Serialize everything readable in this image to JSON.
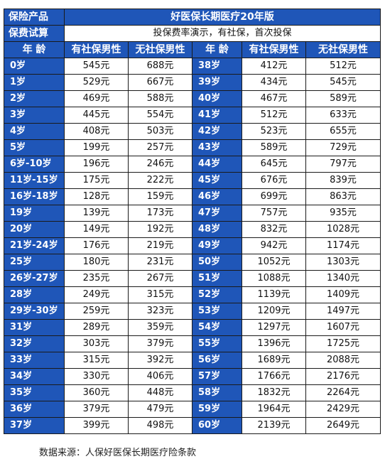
{
  "header": {
    "product_label": "保险产品",
    "product_name": "好医保长期医疗20年版",
    "trial_label": "保费试算",
    "trial_desc": "投保费率演示，有社保，首次投保"
  },
  "columns": {
    "age": "年  龄",
    "with_social": "有社保男性",
    "without_social": "无社保男性"
  },
  "rows": [
    {
      "left": [
        "0岁",
        "545元",
        "688元"
      ],
      "right": [
        "38岁",
        "412元",
        "512元"
      ]
    },
    {
      "left": [
        "1岁",
        "529元",
        "667元"
      ],
      "right": [
        "39岁",
        "434元",
        "545元"
      ]
    },
    {
      "left": [
        "2岁",
        "469元",
        "588元"
      ],
      "right": [
        "40岁",
        "467元",
        "589元"
      ]
    },
    {
      "left": [
        "3岁",
        "445元",
        "554元"
      ],
      "right": [
        "41岁",
        "512元",
        "633元"
      ]
    },
    {
      "left": [
        "4岁",
        "408元",
        "503元"
      ],
      "right": [
        "42岁",
        "523元",
        "655元"
      ]
    },
    {
      "left": [
        "5岁",
        "199元",
        "257元"
      ],
      "right": [
        "43岁",
        "589元",
        "729元"
      ]
    },
    {
      "left": [
        "6岁-10岁",
        "196元",
        "246元"
      ],
      "right": [
        "44岁",
        "645元",
        "797元"
      ]
    },
    {
      "left": [
        "11岁-15岁",
        "175元",
        "222元"
      ],
      "right": [
        "45岁",
        "676元",
        "839元"
      ]
    },
    {
      "left": [
        "16岁-18岁",
        "128元",
        "159元"
      ],
      "right": [
        "46岁",
        "699元",
        "863元"
      ]
    },
    {
      "left": [
        "19岁",
        "139元",
        "173元"
      ],
      "right": [
        "47岁",
        "757元",
        "935元"
      ]
    },
    {
      "left": [
        "20岁",
        "149元",
        "192元"
      ],
      "right": [
        "48岁",
        "832元",
        "1028元"
      ]
    },
    {
      "left": [
        "21岁-24岁",
        "176元",
        "219元"
      ],
      "right": [
        "49岁",
        "942元",
        "1174元"
      ]
    },
    {
      "left": [
        "25岁",
        "180元",
        "231元"
      ],
      "right": [
        "50岁",
        "1052元",
        "1303元"
      ]
    },
    {
      "left": [
        "26岁-27岁",
        "235元",
        "267元"
      ],
      "right": [
        "51岁",
        "1088元",
        "1340元"
      ]
    },
    {
      "left": [
        "28岁",
        "249元",
        "315元"
      ],
      "right": [
        "52岁",
        "1139元",
        "1409元"
      ]
    },
    {
      "left": [
        "29岁-30岁",
        "259元",
        "323元"
      ],
      "right": [
        "53岁",
        "1209元",
        "1497元"
      ]
    },
    {
      "left": [
        "31岁",
        "289元",
        "359元"
      ],
      "right": [
        "54岁",
        "1297元",
        "1607元"
      ]
    },
    {
      "left": [
        "32岁",
        "303元",
        "379元"
      ],
      "right": [
        "55岁",
        "1396元",
        "1725元"
      ]
    },
    {
      "left": [
        "33岁",
        "315元",
        "392元"
      ],
      "right": [
        "56岁",
        "1689元",
        "2088元"
      ]
    },
    {
      "left": [
        "34岁",
        "330元",
        "406元"
      ],
      "right": [
        "57岁",
        "1766元",
        "2176元"
      ]
    },
    {
      "left": [
        "35岁",
        "360元",
        "448元"
      ],
      "right": [
        "58岁",
        "1832元",
        "2264元"
      ]
    },
    {
      "left": [
        "36岁",
        "379元",
        "479元"
      ],
      "right": [
        "59岁",
        "1964元",
        "2429元"
      ]
    },
    {
      "left": [
        "37岁",
        "399元",
        "498元"
      ],
      "right": [
        "60岁",
        "2139元",
        "2649元"
      ]
    }
  ],
  "footnote": "数据来源：人保好医保长期医疗险条款",
  "colors": {
    "header_blue": "#1f56b8",
    "watermark_orange": "#f29a2e",
    "watermark_red": "#d23a2a"
  }
}
